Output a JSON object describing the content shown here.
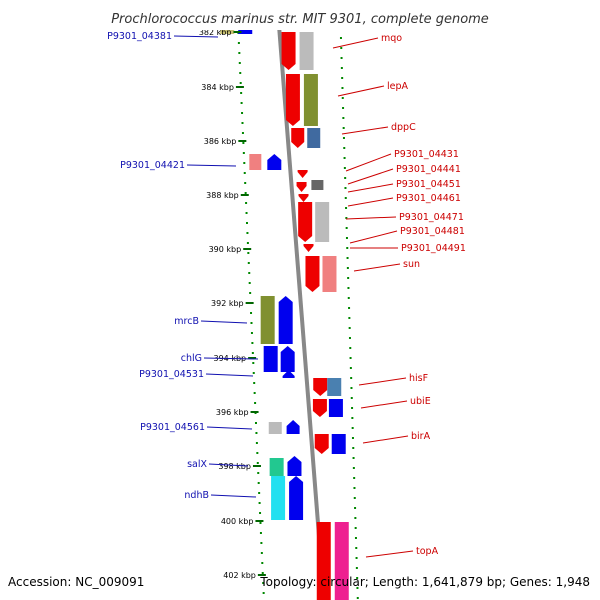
{
  "title": "Prochlorococcus marinus str. MIT 9301, complete genome",
  "accession": "Accession: NC_009091",
  "summary": "Topology: circular; Length: 1,641,879 bp; Genes: 1,948",
  "ticks": [
    "382 kbp",
    "384 kbp",
    "386 kbp",
    "388 kbp",
    "390 kbp",
    "392 kbp",
    "394 kbp",
    "396 kbp",
    "398 kbp",
    "400 kbp",
    "402 kbp"
  ],
  "left_labels": [
    "P9301_04381",
    "P9301_04421",
    "mrcB",
    "chlG",
    "P9301_04531",
    "P9301_04561",
    "salX",
    "ndhB"
  ],
  "right_labels": [
    "mqo",
    "lepA",
    "dppC",
    "P9301_04431",
    "P9301_04441",
    "P9301_04451",
    "P9301_04461",
    "P9301_04471",
    "P9301_04481",
    "P9301_04491",
    "sun",
    "hisF",
    "ubiE",
    "birA",
    "topA"
  ],
  "colors": {
    "forward_cds": "#ee0000",
    "reverse_cds": "#0000ee",
    "backbone": "#888888",
    "gc_skew_dots": "#008800",
    "left_label_text": "#1010b0",
    "right_label_text": "#cc0000"
  }
}
